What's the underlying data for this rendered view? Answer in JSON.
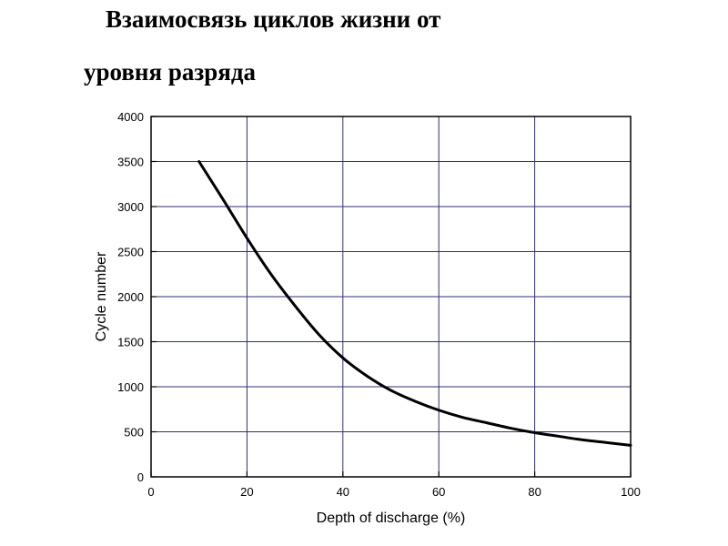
{
  "heading": {
    "line1": "Взаимосвязь циклов жизни от",
    "line2": "уровня разряда"
  },
  "chart_data": {
    "type": "line",
    "title": "Взаимосвязь циклов жизни от уровня разряда",
    "xlabel": "Depth of discharge (%)",
    "ylabel": "Cycle number",
    "xlim": [
      0,
      100
    ],
    "ylim": [
      0,
      4000
    ],
    "x_ticks": [
      0,
      20,
      40,
      60,
      80,
      100
    ],
    "y_ticks": [
      0,
      500,
      1000,
      1500,
      2000,
      2500,
      3000,
      3500,
      4000
    ],
    "grid": true,
    "legend": "none",
    "colors": {
      "grid": "#2f2f7a",
      "line": "#000000",
      "axes": "#000000"
    },
    "series": [
      {
        "x": [
          10,
          15,
          20,
          25,
          30,
          35,
          40,
          45,
          50,
          55,
          60,
          65,
          70,
          75,
          80,
          85,
          90,
          95,
          100
        ],
        "values": [
          3500,
          3080,
          2650,
          2250,
          1900,
          1580,
          1320,
          1120,
          960,
          840,
          740,
          660,
          600,
          540,
          490,
          450,
          410,
          380,
          350
        ]
      }
    ]
  }
}
